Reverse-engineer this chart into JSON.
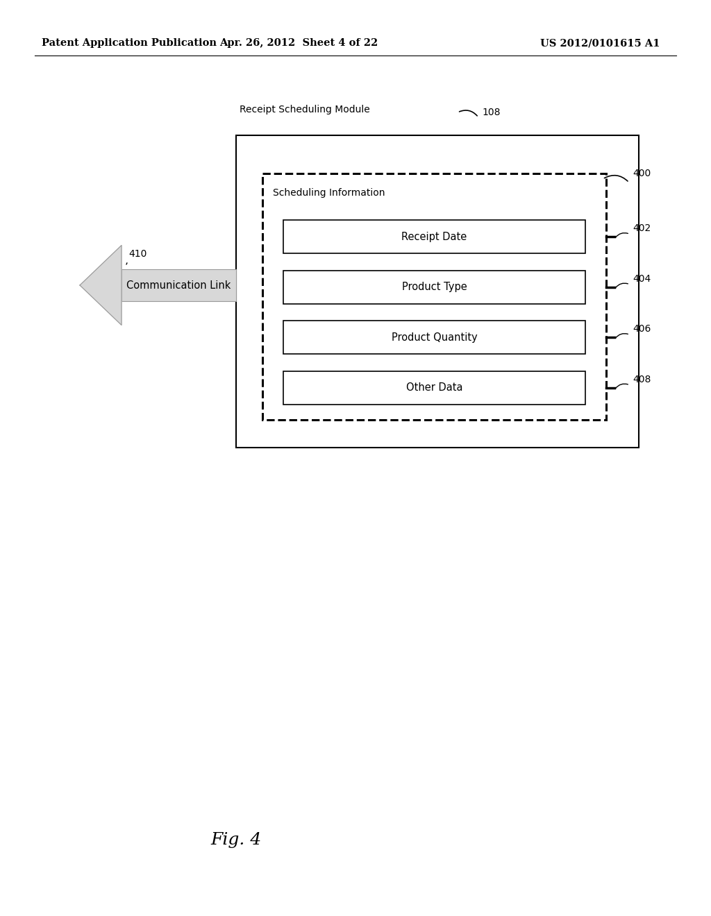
{
  "bg_color": "#ffffff",
  "header_left": "Patent Application Publication",
  "header_center": "Apr. 26, 2012  Sheet 4 of 22",
  "header_right": "US 2012/0101615 A1",
  "header_fontsize": 10.5,
  "module_label": "Receipt Scheduling Module",
  "module_label_ref": "108",
  "sched_info_label": "Scheduling Information",
  "sched_info_ref": "400",
  "items": [
    {
      "label": "Receipt Date",
      "ref": "402"
    },
    {
      "label": "Product Type",
      "ref": "404"
    },
    {
      "label": "Product Quantity",
      "ref": "406"
    },
    {
      "label": "Other Data",
      "ref": "408"
    }
  ],
  "arrow_label": "Communication Link",
  "arrow_ref": "410",
  "fig_label": "Fig. 4"
}
